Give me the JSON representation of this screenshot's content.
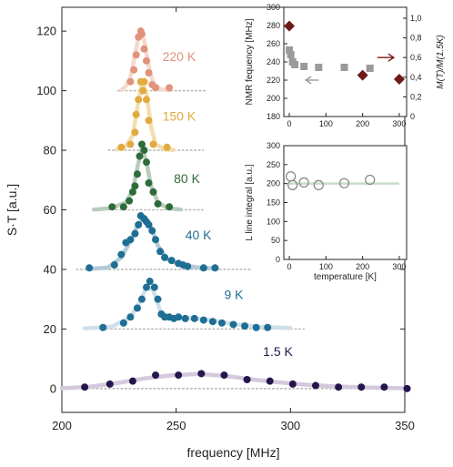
{
  "chart_data": [
    {
      "type": "scatter",
      "id": "main-spectra",
      "xlabel": "frequency [MHz]",
      "ylabel": "S·T [a.u.]",
      "xlim": [
        200,
        350
      ],
      "ylim": [
        -8,
        128
      ],
      "xticks": [
        200,
        250,
        300,
        350
      ],
      "yticks": [
        0,
        20,
        40,
        60,
        80,
        100,
        120
      ],
      "grid": false,
      "series": [
        {
          "name": "220 K",
          "offset": 100,
          "color": "#e0927a",
          "fit_color": "#f5d9cc",
          "label_pos": [
            244,
            110
          ],
          "x": [
            230,
            231.5,
            232.5,
            233.5,
            234.5,
            235,
            236,
            237,
            238,
            239.5,
            241,
            247
          ],
          "y": [
            103,
            107,
            112,
            118,
            120,
            119,
            114,
            110,
            106,
            102,
            101,
            101
          ],
          "fit": [
            [
              226,
              100.2
            ],
            [
              228,
              101.5
            ],
            [
              230,
              104.5
            ],
            [
              232,
              112
            ],
            [
              234,
              120
            ],
            [
              236,
              117
            ],
            [
              238,
              108
            ],
            [
              240,
              102.5
            ],
            [
              243,
              100.5
            ],
            [
              247,
              100.1
            ]
          ]
        },
        {
          "name": "150 K",
          "offset": 80,
          "color": "#e2aa40",
          "fit_color": "#f2dfae",
          "label_pos": [
            244,
            90
          ],
          "x": [
            226,
            230,
            232,
            232.5,
            233.5,
            234.5,
            235.5,
            236,
            237,
            238,
            240,
            246
          ],
          "y": [
            81,
            82,
            86,
            92,
            97,
            103,
            100,
            103,
            97,
            90,
            82,
            81
          ],
          "fit": [
            [
              224,
              80.2
            ],
            [
              228,
              81.2
            ],
            [
              231,
              85
            ],
            [
              233,
              94
            ],
            [
              235,
              103
            ],
            [
              237,
              99
            ],
            [
              239,
              88
            ],
            [
              241,
              82
            ],
            [
              245,
              80.3
            ],
            [
              249,
              80.1
            ]
          ]
        },
        {
          "name": "80 K",
          "offset": 60,
          "color": "#2f6b3a",
          "fit_color": "#b9ccbc",
          "label_pos": [
            249,
            69
          ],
          "x": [
            222,
            227,
            229.5,
            231,
            232,
            233,
            234,
            235,
            236,
            237,
            238,
            240,
            242,
            247
          ],
          "y": [
            61,
            61,
            63,
            66,
            68,
            72,
            78,
            82,
            80,
            76,
            69,
            66,
            62,
            61
          ],
          "fit": [
            [
              214,
              60.1
            ],
            [
              222,
              60.6
            ],
            [
              228,
              62.5
            ],
            [
              231,
              66.5
            ],
            [
              233,
              74
            ],
            [
              235,
              81
            ],
            [
              237,
              76
            ],
            [
              239,
              68
            ],
            [
              242,
              62.5
            ],
            [
              246,
              60.6
            ],
            [
              252,
              60.1
            ]
          ]
        },
        {
          "name": "40 K",
          "offset": 40,
          "color": "#1f6e94",
          "fit_color": "#b3cad9",
          "label_pos": [
            254,
            50
          ],
          "x": [
            212,
            223,
            226,
            228,
            230,
            232,
            233.5,
            234.5,
            236,
            237,
            238,
            239.5,
            241,
            243,
            245,
            248,
            251,
            253,
            255,
            262,
            267
          ],
          "y": [
            40.5,
            41.5,
            45,
            49,
            50,
            52,
            55,
            58,
            57,
            56,
            55,
            53,
            50,
            46,
            44,
            43,
            42,
            41.5,
            41,
            40.5,
            40.5
          ],
          "fit": [
            [
              212,
              40.2
            ],
            [
              220,
              40.6
            ],
            [
              226,
              44
            ],
            [
              230,
              49.5
            ],
            [
              233,
              54.5
            ],
            [
              236,
              57.8
            ],
            [
              239,
              54
            ],
            [
              242,
              48
            ],
            [
              246,
              43.5
            ],
            [
              252,
              41.5
            ],
            [
              260,
              40.6
            ],
            [
              268,
              40.3
            ]
          ]
        },
        {
          "name": "9 K",
          "offset": 20,
          "color": "#1f6e94",
          "fit_color": "#cfe0ea",
          "label_pos": [
            271,
            30
          ],
          "x": [
            218,
            227,
            230,
            233,
            235,
            237,
            238.5,
            240.5,
            242,
            243.5,
            245,
            247,
            249,
            251,
            254,
            258,
            262,
            266,
            270,
            275,
            280,
            285,
            290
          ],
          "y": [
            20.5,
            22,
            24,
            27,
            30,
            34,
            36,
            34,
            30,
            25,
            24,
            24,
            23.5,
            24,
            23.5,
            23.5,
            23,
            22.5,
            22,
            21.5,
            21,
            20.5,
            20.5
          ],
          "fit": [
            [
              210,
              20.2
            ],
            [
              222,
              20.8
            ],
            [
              230,
              24
            ],
            [
              234,
              29
            ],
            [
              237,
              34
            ],
            [
              240,
              33
            ],
            [
              243,
              26
            ],
            [
              247,
              24
            ],
            [
              255,
              23.7
            ],
            [
              265,
              23
            ],
            [
              275,
              21.7
            ],
            [
              285,
              20.8
            ],
            [
              300,
              20.3
            ]
          ]
        },
        {
          "name": "1.5 K",
          "offset": 0,
          "color": "#23174e",
          "fit_color": "#d6c8dc",
          "label_pos": [
            288,
            11
          ],
          "x": [
            210,
            221,
            231,
            241,
            251,
            261,
            271,
            281,
            291,
            301,
            311,
            321,
            331,
            341,
            351
          ],
          "y": [
            0.5,
            1.5,
            2.5,
            4.5,
            4.5,
            5,
            4.5,
            3,
            2.5,
            1.5,
            1,
            0.5,
            0.5,
            0.5,
            0
          ],
          "fit": [
            [
              200,
              0.1
            ],
            [
              212,
              0.6
            ],
            [
              224,
              1.8
            ],
            [
              236,
              3.4
            ],
            [
              248,
              4.4
            ],
            [
              260,
              4.9
            ],
            [
              272,
              4.2
            ],
            [
              284,
              3
            ],
            [
              296,
              2
            ],
            [
              308,
              1.2
            ],
            [
              320,
              0.7
            ],
            [
              335,
              0.3
            ],
            [
              350,
              0.1
            ]
          ]
        }
      ]
    },
    {
      "type": "scatter",
      "id": "inset-nmr-frequency",
      "xlabel": "",
      "ylabel": "NMR fequency [MHz]",
      "y2label": "M(T)/M(1.5K)",
      "xlim": [
        -15,
        320
      ],
      "ylim": [
        180,
        300
      ],
      "y2lim": [
        0,
        1
      ],
      "xticks": [
        0,
        100,
        200,
        300
      ],
      "yticks": [
        180,
        200,
        220,
        240,
        260,
        280,
        300
      ],
      "y2ticks": [
        "0",
        "0,2",
        "0,4",
        "0,6",
        "0,8",
        "1,0"
      ],
      "arrows": [
        {
          "direction": "left",
          "color": "#9a9a9a",
          "x": [
            80,
            45
          ],
          "y": 220
        },
        {
          "direction": "right",
          "color": "#7a1a18",
          "x": [
            240,
            285
          ],
          "y": 265
        }
      ],
      "series": [
        {
          "name": "",
          "marker": "square",
          "color": "#9a9a9a",
          "axis": "left",
          "x": [
            0,
            4,
            9,
            15,
            40,
            80,
            150,
            220
          ],
          "y": [
            253,
            248,
            240,
            237,
            235,
            234,
            234,
            233
          ]
        },
        {
          "name": "",
          "marker": "diamond",
          "color": "#6e1a1a",
          "axis": "right",
          "x": [
            0,
            200,
            300
          ],
          "y": [
            0.92,
            0.42,
            0.38
          ]
        }
      ]
    },
    {
      "type": "scatter",
      "id": "inset-line-integral",
      "xlabel": "temperature [K]",
      "ylabel": "L line integral [a.u.]",
      "xlim": [
        -15,
        320
      ],
      "ylim": [
        0,
        300
      ],
      "xticks": [
        0,
        100,
        200,
        300
      ],
      "yticks": [
        0,
        50,
        100,
        150,
        200,
        250,
        300
      ],
      "reference_line": {
        "y": 200,
        "color": "#c7dcc8"
      },
      "series": [
        {
          "name": "",
          "marker": "circle-open",
          "color": "#8a8a8a",
          "x": [
            4,
            9,
            40,
            80,
            150,
            220
          ],
          "y": [
            219,
            196,
            203,
            196,
            201,
            210
          ]
        }
      ]
    }
  ]
}
